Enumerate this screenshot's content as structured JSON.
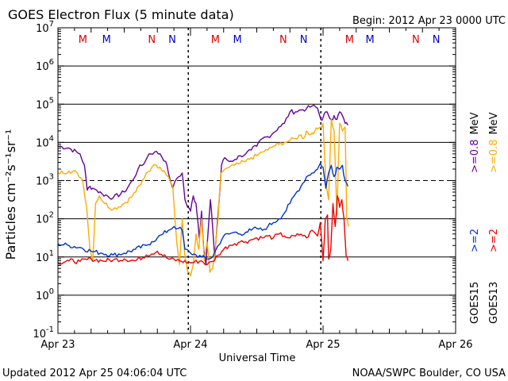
{
  "chart_data": {
    "type": "line",
    "title": "GOES Electron Flux (5 minute data)",
    "begin_label": "Begin: 2012 Apr 23 0000 UTC",
    "xlabel": "Universal Time",
    "ylabel": "Particles cm⁻²s⁻¹sr⁻¹",
    "updated_label": "Updated 2012 Apr 25 04:06:04 UTC",
    "credit_label": "NOAA/SWPC Boulder, CO USA",
    "xlim": [
      0,
      72
    ],
    "ylim_log10": [
      -1,
      7
    ],
    "y_ticks": [
      {
        "base": "10",
        "exp": "7",
        "value": 7
      },
      {
        "base": "10",
        "exp": "6",
        "value": 6
      },
      {
        "base": "10",
        "exp": "5",
        "value": 5
      },
      {
        "base": "10",
        "exp": "4",
        "value": 4
      },
      {
        "base": "10",
        "exp": "3",
        "value": 3
      },
      {
        "base": "10",
        "exp": "2",
        "value": 2
      },
      {
        "base": "10",
        "exp": "1",
        "value": 1
      },
      {
        "base": "10",
        "exp": "0",
        "value": 0
      },
      {
        "base": "10",
        "exp": "-1",
        "value": -1
      }
    ],
    "x_ticks": [
      {
        "label": "Apr 23",
        "hour": 0
      },
      {
        "label": "Apr 24",
        "hour": 24
      },
      {
        "label": "Apr 25",
        "hour": 48
      },
      {
        "label": "Apr 26",
        "hour": 72
      }
    ],
    "markers": [
      {
        "label": "M",
        "hour": 4.5,
        "color": "#dd0000"
      },
      {
        "label": "M",
        "hour": 8.8,
        "color": "#0000cc"
      },
      {
        "label": "N",
        "hour": 17.0,
        "color": "#dd0000"
      },
      {
        "label": "N",
        "hour": 20.7,
        "color": "#0000cc"
      },
      {
        "label": "M",
        "hour": 28.5,
        "color": "#dd0000"
      },
      {
        "label": "M",
        "hour": 32.5,
        "color": "#0000cc"
      },
      {
        "label": "N",
        "hour": 40.8,
        "color": "#dd0000"
      },
      {
        "label": "N",
        "hour": 44.5,
        "color": "#0000cc"
      },
      {
        "label": "M",
        "hour": 52.8,
        "color": "#dd0000"
      },
      {
        "label": "M",
        "hour": 56.5,
        "color": "#0000cc"
      },
      {
        "label": "N",
        "hour": 64.8,
        "color": "#dd0000"
      },
      {
        "label": "N",
        "hour": 68.5,
        "color": "#0000cc"
      }
    ],
    "threshold_line_log10": 3,
    "dashed_vertical_hours": [
      23.6,
      47.6
    ],
    "series": [
      {
        "name": ">=0.8 MeV",
        "satellite": "GOES15",
        "color": "#660099",
        "x": [
          0,
          2,
          4,
          4.8,
          5.3,
          5.8,
          6.3,
          7,
          8,
          10,
          12,
          13.5,
          14.5,
          15.8,
          16.5,
          17.5,
          18.5,
          19.5,
          20,
          20.8,
          21.5,
          22.5,
          23,
          23.5,
          24,
          24.5,
          25,
          25.3,
          25.6,
          26,
          26.4,
          26.8,
          27.2,
          27.6,
          28,
          28.4,
          28.8,
          29.2,
          29.6,
          30.2,
          31,
          32,
          33,
          34,
          35,
          36,
          37,
          38,
          39,
          40,
          41,
          42,
          43,
          44,
          45,
          46,
          47,
          47.6,
          48,
          48.5,
          49,
          49.5,
          50,
          50.5,
          51,
          51.5,
          52,
          52.5
        ],
        "y": [
          3.9,
          3.85,
          3.7,
          3.4,
          2.75,
          2.85,
          2.8,
          2.75,
          2.65,
          2.55,
          2.7,
          3.0,
          3.3,
          3.5,
          3.7,
          3.75,
          3.7,
          3.5,
          3.2,
          2.8,
          3.05,
          3.2,
          2.5,
          2.3,
          2.2,
          2.6,
          2.4,
          2.0,
          1.5,
          2.2,
          1.2,
          0.8,
          1.7,
          2.5,
          1.8,
          1.0,
          1.8,
          2.5,
          3.4,
          3.6,
          3.5,
          3.55,
          3.65,
          3.7,
          3.8,
          3.9,
          4.1,
          4.15,
          4.25,
          4.4,
          4.5,
          4.8,
          4.8,
          4.85,
          4.88,
          4.95,
          4.9,
          4.6,
          4.65,
          4.8,
          4.7,
          4.6,
          4.7,
          4.6,
          4.8,
          4.7,
          4.5,
          4.45
        ]
      },
      {
        "name": ">=0.8 MeV",
        "satellite": "GOES13",
        "color": "#ffaa00",
        "x": [
          0,
          2,
          3.5,
          4.5,
          5.2,
          5.8,
          6.3,
          6.8,
          7.5,
          8.5,
          10,
          12,
          13.5,
          15,
          16,
          17,
          17.8,
          18.5,
          19.3,
          20,
          20.8,
          21.5,
          22,
          22.5,
          23,
          23.5,
          24,
          24.5,
          25,
          25.5,
          26,
          26.5,
          27,
          27.5,
          28,
          28.5,
          29,
          29.5,
          30.2,
          31,
          32,
          33,
          34,
          35,
          36,
          37,
          38,
          39,
          40,
          41,
          42,
          43,
          44,
          44.5,
          45,
          45.5,
          46,
          46.5,
          47,
          47.5,
          48,
          48.5,
          49,
          49.5,
          50,
          50.5,
          51,
          51.5,
          52,
          52.3,
          52.6
        ],
        "y": [
          3.2,
          3.25,
          3.2,
          3.0,
          2.3,
          1.2,
          0.9,
          2.4,
          2.6,
          2.4,
          2.25,
          2.4,
          2.6,
          2.9,
          3.2,
          3.35,
          3.4,
          3.35,
          3.25,
          3.1,
          2.85,
          1.4,
          0.8,
          2.0,
          1.0,
          0.6,
          0.5,
          0.8,
          1.6,
          1.2,
          2.0,
          0.9,
          1.4,
          0.6,
          0.7,
          1.2,
          2.0,
          3.2,
          3.3,
          3.35,
          3.4,
          3.45,
          3.5,
          3.6,
          3.65,
          3.75,
          3.8,
          3.9,
          3.95,
          4.0,
          4.05,
          4.1,
          4.2,
          4.1,
          4.3,
          4.2,
          4.25,
          4.3,
          4.35,
          4.4,
          4.5,
          3.0,
          2.5,
          4.6,
          4.3,
          2.1,
          4.5,
          4.3,
          4.4,
          2.0,
          1.8
        ]
      },
      {
        "name": ">=2 MeV",
        "satellite": "GOES15",
        "color": "#0033cc",
        "x": [
          0,
          2,
          4,
          6,
          8,
          10,
          12,
          14,
          16,
          17,
          18,
          19,
          20,
          21,
          21.8,
          22.5,
          23,
          24,
          25,
          26,
          27,
          28,
          29,
          30,
          31,
          32,
          33,
          34,
          35,
          36,
          37,
          38,
          39,
          40,
          41,
          42,
          43,
          44,
          45,
          46,
          47,
          47.5,
          48,
          48.5,
          49,
          49.5,
          50,
          50.5,
          51,
          51.5,
          52,
          52.5
        ],
        "y": [
          1.35,
          1.3,
          1.25,
          1.15,
          1.1,
          1.05,
          1.1,
          1.2,
          1.3,
          1.4,
          1.5,
          1.6,
          1.7,
          1.8,
          1.75,
          1.7,
          1.2,
          1.1,
          1.05,
          1.0,
          0.95,
          1.0,
          1.3,
          1.55,
          1.6,
          1.65,
          1.6,
          1.65,
          1.7,
          1.75,
          1.7,
          1.8,
          1.9,
          2.0,
          2.15,
          2.4,
          2.65,
          2.85,
          3.1,
          3.2,
          3.3,
          3.45,
          3.35,
          2.8,
          3.2,
          3.4,
          3.1,
          3.35,
          3.3,
          3.4,
          3.0,
          2.85
        ]
      },
      {
        "name": ">=2 MeV",
        "satellite": "GOES13",
        "color": "#ee0000",
        "x": [
          0,
          2,
          4,
          6,
          8,
          10,
          12,
          14,
          16,
          18,
          20,
          22,
          24,
          26,
          27,
          28,
          29,
          30,
          31,
          32,
          33,
          34,
          35,
          36,
          37,
          38,
          39,
          40,
          41,
          42,
          43,
          44,
          45,
          46,
          47,
          47.5,
          48,
          48.4,
          48.8,
          49,
          49.4,
          49.8,
          50.2,
          50.6,
          51,
          51.4,
          51.8,
          52.2,
          52.5
        ],
        "y": [
          0.85,
          0.9,
          0.88,
          0.95,
          0.9,
          0.92,
          0.95,
          0.9,
          1.05,
          1.15,
          0.95,
          0.9,
          0.85,
          0.9,
          0.8,
          0.88,
          1.05,
          1.2,
          1.3,
          1.35,
          1.4,
          1.4,
          1.45,
          1.5,
          1.5,
          1.55,
          1.5,
          1.6,
          1.55,
          1.5,
          1.55,
          1.6,
          1.5,
          1.7,
          1.55,
          1.9,
          0.9,
          2.0,
          2.1,
          0.95,
          1.2,
          2.4,
          1.8,
          2.6,
          2.3,
          2.5,
          2.0,
          1.0,
          0.9
        ]
      }
    ],
    "right_legend": [
      {
        "column": 1,
        "lines": [
          {
            "text": ">=0.8",
            "color": "#660099"
          },
          {
            "text": "MeV",
            "color": "#000000"
          }
        ]
      },
      {
        "column": 2,
        "lines": [
          {
            "text": ">=0.8",
            "color": "#ffaa00"
          },
          {
            "text": "MeV",
            "color": "#000000"
          }
        ]
      },
      {
        "column": 1,
        "lines": [
          {
            "text": ">=2",
            "color": "#0033cc"
          }
        ]
      },
      {
        "column": 2,
        "lines": [
          {
            "text": ">=2",
            "color": "#ee0000"
          }
        ]
      },
      {
        "column": 1,
        "lines": [
          {
            "text": "GOES15",
            "color": "#000000"
          }
        ]
      },
      {
        "column": 2,
        "lines": [
          {
            "text": "GOES13",
            "color": "#000000"
          }
        ]
      }
    ]
  }
}
